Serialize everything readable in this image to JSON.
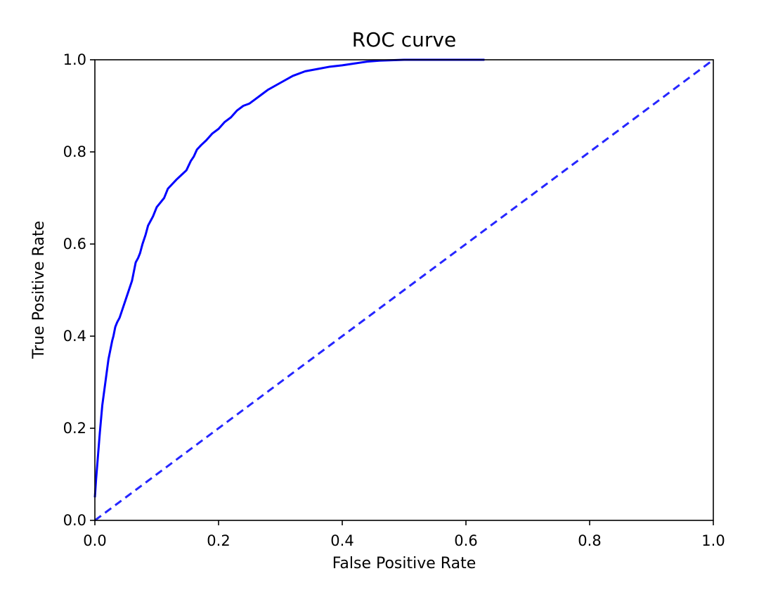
{
  "chart_data": {
    "type": "line",
    "title": "ROC curve",
    "xlabel": "False Positive Rate",
    "ylabel": "True Positive Rate",
    "xlim": [
      0.0,
      1.0
    ],
    "ylim": [
      0.0,
      1.0
    ],
    "x_ticks": [
      "0.0",
      "0.2",
      "0.4",
      "0.6",
      "0.8",
      "1.0"
    ],
    "y_ticks": [
      "0.0",
      "0.2",
      "0.4",
      "0.6",
      "0.8",
      "1.0"
    ],
    "grid": false,
    "legend": "none",
    "series": [
      {
        "style": "solid",
        "color": "#0000ff",
        "x": [
          0.0,
          0.002,
          0.005,
          0.008,
          0.01,
          0.012,
          0.015,
          0.018,
          0.02,
          0.022,
          0.025,
          0.028,
          0.03,
          0.033,
          0.036,
          0.04,
          0.045,
          0.05,
          0.055,
          0.06,
          0.063,
          0.066,
          0.07,
          0.073,
          0.077,
          0.082,
          0.086,
          0.09,
          0.094,
          0.1,
          0.106,
          0.112,
          0.118,
          0.125,
          0.132,
          0.14,
          0.148,
          0.155,
          0.16,
          0.165,
          0.172,
          0.18,
          0.19,
          0.2,
          0.21,
          0.22,
          0.23,
          0.24,
          0.25,
          0.26,
          0.27,
          0.28,
          0.3,
          0.32,
          0.34,
          0.36,
          0.38,
          0.4,
          0.42,
          0.44,
          0.46,
          0.5,
          0.55,
          0.6,
          0.63
        ],
        "y": [
          0.05,
          0.09,
          0.14,
          0.19,
          0.22,
          0.25,
          0.28,
          0.31,
          0.33,
          0.35,
          0.37,
          0.39,
          0.4,
          0.42,
          0.43,
          0.44,
          0.46,
          0.48,
          0.5,
          0.52,
          0.54,
          0.56,
          0.57,
          0.58,
          0.6,
          0.62,
          0.64,
          0.65,
          0.66,
          0.68,
          0.69,
          0.7,
          0.72,
          0.73,
          0.74,
          0.75,
          0.76,
          0.78,
          0.79,
          0.805,
          0.815,
          0.825,
          0.84,
          0.85,
          0.865,
          0.875,
          0.89,
          0.9,
          0.905,
          0.915,
          0.925,
          0.935,
          0.95,
          0.965,
          0.975,
          0.98,
          0.985,
          0.988,
          0.992,
          0.996,
          0.998,
          1.0,
          1.0,
          1.0,
          1.0
        ]
      },
      {
        "style": "dashed",
        "color": "#0000ff",
        "x": [
          0.0,
          1.0
        ],
        "y": [
          0.0,
          1.0
        ]
      }
    ]
  }
}
